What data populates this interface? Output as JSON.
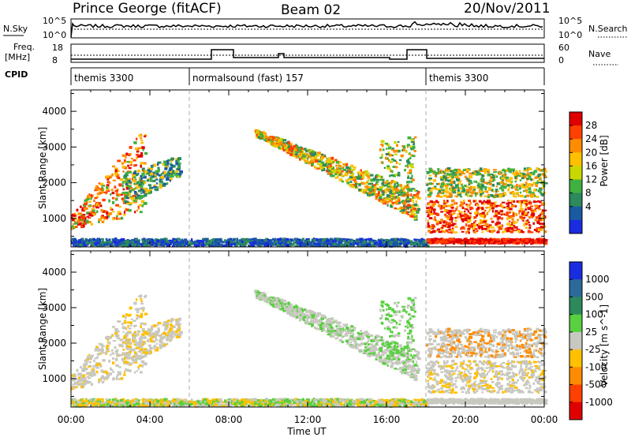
{
  "header": {
    "station": "Prince George (fitACF)",
    "beam": "Beam 02",
    "date": "20/Nov/2011"
  },
  "panels": {
    "nsky_label": "N.Sky",
    "nsearch_label": "N.Search",
    "freq_label_1": "Freq.",
    "freq_label_2": "[MHz]",
    "nave_label": "Nave",
    "cpid_label": "CPID",
    "nsky_ticks": [
      "10^5",
      "10^0"
    ],
    "nsearch_ticks": [
      "10^5",
      "10^0"
    ],
    "freq_ticks": [
      "18",
      "8"
    ],
    "nave_ticks": [
      "60",
      "0"
    ]
  },
  "cpid_segments": [
    {
      "label": "themis 3300",
      "start": 0,
      "end": 6
    },
    {
      "label": "normalsound (fast) 157",
      "start": 6,
      "end": 18
    },
    {
      "label": "themis 3300",
      "start": 18,
      "end": 24
    }
  ],
  "chart_data": [
    {
      "type": "heatmap",
      "title": "Power",
      "xlabel": "Time UT",
      "ylabel": "Slant Range [km]",
      "xlim": [
        0,
        24
      ],
      "ylim": [
        200,
        4600
      ],
      "x_ticks": [
        "00:00",
        "04:00",
        "08:00",
        "12:00",
        "16:00",
        "20:00",
        "00:00"
      ],
      "y_ticks": [
        "1000",
        "2000",
        "3000",
        "4000"
      ],
      "colorbar": {
        "label": "Power [dB]",
        "ticks": [
          "28",
          "24",
          "20",
          "16",
          "12",
          "8",
          "4"
        ],
        "colors": [
          "#e00000",
          "#ff4000",
          "#ff8c00",
          "#ffc000",
          "#c8d800",
          "#40b040",
          "#2c8a5c",
          "#1a5aa0",
          "#1a2ce0"
        ]
      }
    },
    {
      "type": "heatmap",
      "title": "Velocity",
      "xlabel": "Time UT",
      "ylabel": "Slant Range [km]",
      "xlim": [
        0,
        24
      ],
      "ylim": [
        200,
        4600
      ],
      "x_ticks": [
        "00:00",
        "04:00",
        "08:00",
        "12:00",
        "16:00",
        "20:00",
        "00:00"
      ],
      "y_ticks": [
        "1000",
        "2000",
        "3000",
        "4000"
      ],
      "colorbar": {
        "label": "Velocity [m s^-1]",
        "ticks": [
          "1000",
          "500",
          "100",
          "25",
          "-25",
          "-100",
          "-500",
          "-1000"
        ],
        "colors": [
          "#1a2ce0",
          "#2c6a9a",
          "#2c8a5c",
          "#58d040",
          "#c8c8c0",
          "#ffc000",
          "#ff8c00",
          "#ff4000",
          "#e00000"
        ]
      }
    }
  ]
}
